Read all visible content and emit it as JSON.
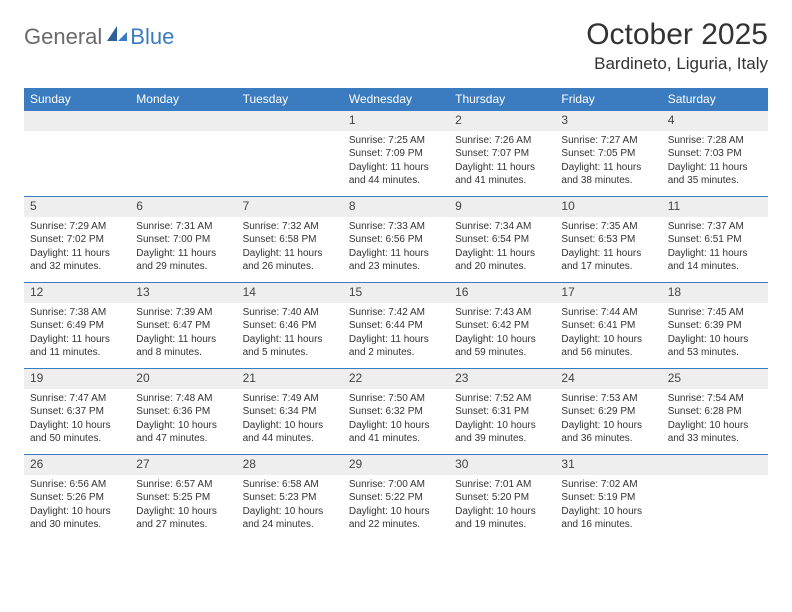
{
  "logo": {
    "text1": "General",
    "text2": "Blue"
  },
  "title": "October 2025",
  "location": "Bardineto, Liguria, Italy",
  "colors": {
    "header_bg": "#3b7bbf",
    "header_text": "#ffffff",
    "daynum_bg": "#eeeeee",
    "border": "#3b7bbf",
    "body_text": "#333333",
    "logo_gray": "#6a6a6a",
    "logo_blue": "#3b7bbf",
    "page_bg": "#ffffff"
  },
  "typography": {
    "title_fontsize": 30,
    "location_fontsize": 17,
    "dayname_fontsize": 12,
    "daynum_fontsize": 12,
    "celltext_fontsize": 10
  },
  "day_names": [
    "Sunday",
    "Monday",
    "Tuesday",
    "Wednesday",
    "Thursday",
    "Friday",
    "Saturday"
  ],
  "weeks": [
    [
      {
        "num": "",
        "lines": [
          "",
          "",
          "",
          ""
        ]
      },
      {
        "num": "",
        "lines": [
          "",
          "",
          "",
          ""
        ]
      },
      {
        "num": "",
        "lines": [
          "",
          "",
          "",
          ""
        ]
      },
      {
        "num": "1",
        "lines": [
          "Sunrise: 7:25 AM",
          "Sunset: 7:09 PM",
          "Daylight: 11 hours",
          "and 44 minutes."
        ]
      },
      {
        "num": "2",
        "lines": [
          "Sunrise: 7:26 AM",
          "Sunset: 7:07 PM",
          "Daylight: 11 hours",
          "and 41 minutes."
        ]
      },
      {
        "num": "3",
        "lines": [
          "Sunrise: 7:27 AM",
          "Sunset: 7:05 PM",
          "Daylight: 11 hours",
          "and 38 minutes."
        ]
      },
      {
        "num": "4",
        "lines": [
          "Sunrise: 7:28 AM",
          "Sunset: 7:03 PM",
          "Daylight: 11 hours",
          "and 35 minutes."
        ]
      }
    ],
    [
      {
        "num": "5",
        "lines": [
          "Sunrise: 7:29 AM",
          "Sunset: 7:02 PM",
          "Daylight: 11 hours",
          "and 32 minutes."
        ]
      },
      {
        "num": "6",
        "lines": [
          "Sunrise: 7:31 AM",
          "Sunset: 7:00 PM",
          "Daylight: 11 hours",
          "and 29 minutes."
        ]
      },
      {
        "num": "7",
        "lines": [
          "Sunrise: 7:32 AM",
          "Sunset: 6:58 PM",
          "Daylight: 11 hours",
          "and 26 minutes."
        ]
      },
      {
        "num": "8",
        "lines": [
          "Sunrise: 7:33 AM",
          "Sunset: 6:56 PM",
          "Daylight: 11 hours",
          "and 23 minutes."
        ]
      },
      {
        "num": "9",
        "lines": [
          "Sunrise: 7:34 AM",
          "Sunset: 6:54 PM",
          "Daylight: 11 hours",
          "and 20 minutes."
        ]
      },
      {
        "num": "10",
        "lines": [
          "Sunrise: 7:35 AM",
          "Sunset: 6:53 PM",
          "Daylight: 11 hours",
          "and 17 minutes."
        ]
      },
      {
        "num": "11",
        "lines": [
          "Sunrise: 7:37 AM",
          "Sunset: 6:51 PM",
          "Daylight: 11 hours",
          "and 14 minutes."
        ]
      }
    ],
    [
      {
        "num": "12",
        "lines": [
          "Sunrise: 7:38 AM",
          "Sunset: 6:49 PM",
          "Daylight: 11 hours",
          "and 11 minutes."
        ]
      },
      {
        "num": "13",
        "lines": [
          "Sunrise: 7:39 AM",
          "Sunset: 6:47 PM",
          "Daylight: 11 hours",
          "and 8 minutes."
        ]
      },
      {
        "num": "14",
        "lines": [
          "Sunrise: 7:40 AM",
          "Sunset: 6:46 PM",
          "Daylight: 11 hours",
          "and 5 minutes."
        ]
      },
      {
        "num": "15",
        "lines": [
          "Sunrise: 7:42 AM",
          "Sunset: 6:44 PM",
          "Daylight: 11 hours",
          "and 2 minutes."
        ]
      },
      {
        "num": "16",
        "lines": [
          "Sunrise: 7:43 AM",
          "Sunset: 6:42 PM",
          "Daylight: 10 hours",
          "and 59 minutes."
        ]
      },
      {
        "num": "17",
        "lines": [
          "Sunrise: 7:44 AM",
          "Sunset: 6:41 PM",
          "Daylight: 10 hours",
          "and 56 minutes."
        ]
      },
      {
        "num": "18",
        "lines": [
          "Sunrise: 7:45 AM",
          "Sunset: 6:39 PM",
          "Daylight: 10 hours",
          "and 53 minutes."
        ]
      }
    ],
    [
      {
        "num": "19",
        "lines": [
          "Sunrise: 7:47 AM",
          "Sunset: 6:37 PM",
          "Daylight: 10 hours",
          "and 50 minutes."
        ]
      },
      {
        "num": "20",
        "lines": [
          "Sunrise: 7:48 AM",
          "Sunset: 6:36 PM",
          "Daylight: 10 hours",
          "and 47 minutes."
        ]
      },
      {
        "num": "21",
        "lines": [
          "Sunrise: 7:49 AM",
          "Sunset: 6:34 PM",
          "Daylight: 10 hours",
          "and 44 minutes."
        ]
      },
      {
        "num": "22",
        "lines": [
          "Sunrise: 7:50 AM",
          "Sunset: 6:32 PM",
          "Daylight: 10 hours",
          "and 41 minutes."
        ]
      },
      {
        "num": "23",
        "lines": [
          "Sunrise: 7:52 AM",
          "Sunset: 6:31 PM",
          "Daylight: 10 hours",
          "and 39 minutes."
        ]
      },
      {
        "num": "24",
        "lines": [
          "Sunrise: 7:53 AM",
          "Sunset: 6:29 PM",
          "Daylight: 10 hours",
          "and 36 minutes."
        ]
      },
      {
        "num": "25",
        "lines": [
          "Sunrise: 7:54 AM",
          "Sunset: 6:28 PM",
          "Daylight: 10 hours",
          "and 33 minutes."
        ]
      }
    ],
    [
      {
        "num": "26",
        "lines": [
          "Sunrise: 6:56 AM",
          "Sunset: 5:26 PM",
          "Daylight: 10 hours",
          "and 30 minutes."
        ]
      },
      {
        "num": "27",
        "lines": [
          "Sunrise: 6:57 AM",
          "Sunset: 5:25 PM",
          "Daylight: 10 hours",
          "and 27 minutes."
        ]
      },
      {
        "num": "28",
        "lines": [
          "Sunrise: 6:58 AM",
          "Sunset: 5:23 PM",
          "Daylight: 10 hours",
          "and 24 minutes."
        ]
      },
      {
        "num": "29",
        "lines": [
          "Sunrise: 7:00 AM",
          "Sunset: 5:22 PM",
          "Daylight: 10 hours",
          "and 22 minutes."
        ]
      },
      {
        "num": "30",
        "lines": [
          "Sunrise: 7:01 AM",
          "Sunset: 5:20 PM",
          "Daylight: 10 hours",
          "and 19 minutes."
        ]
      },
      {
        "num": "31",
        "lines": [
          "Sunrise: 7:02 AM",
          "Sunset: 5:19 PM",
          "Daylight: 10 hours",
          "and 16 minutes."
        ]
      },
      {
        "num": "",
        "lines": [
          "",
          "",
          "",
          ""
        ]
      }
    ]
  ]
}
